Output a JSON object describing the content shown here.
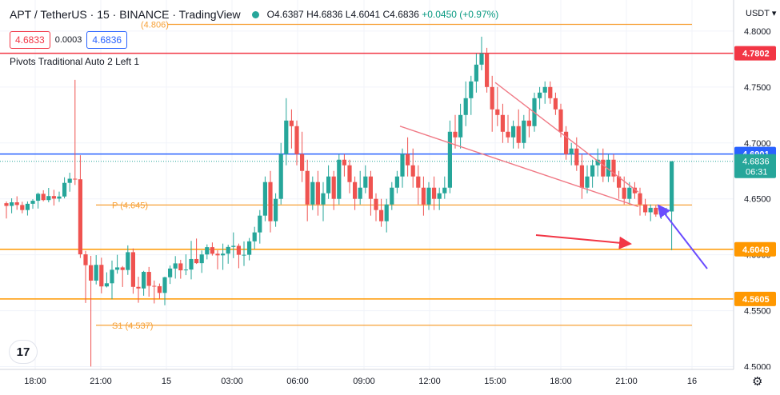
{
  "header": {
    "title": "APT / TetherUS · 15 · BINANCE · TradingView",
    "ohlc_open": "O4.6387",
    "ohlc_high": "H4.6836",
    "ohlc_low": "L4.6041",
    "ohlc_close": "C4.6836",
    "ohlc_change": "+0.0450 (+0.97%)"
  },
  "quote": {
    "bid": "4.6833",
    "spread": "0.0003",
    "ask": "4.6836"
  },
  "indicator_label": "Pivots Traditional Auto 2 Left 1",
  "currency_label": "USDT",
  "logo_text": "17",
  "chart_data": {
    "type": "candlestick",
    "symbol": "APT / TetherUS",
    "interval": "15",
    "exchange": "BINANCE",
    "colors": {
      "up": "#26a69a",
      "down": "#ef5350",
      "pivot": "#f7a035",
      "resistance": "#f23645",
      "support_line": "#ff9800",
      "current": "#2962ff",
      "wedge": "#f07a86",
      "arrow_red": "#f23645",
      "arrow_blue": "#6a4cff"
    },
    "y_axis": {
      "ticks": [
        "4.8000",
        "4.7500",
        "4.7000",
        "4.6500",
        "4.6000",
        "4.5500",
        "4.5000"
      ],
      "range": [
        4.4975,
        4.8278
      ]
    },
    "x_axis": {
      "ticks": [
        "18:00",
        "21:00",
        "15",
        "03:00",
        "06:00",
        "09:00",
        "12:00",
        "15:00",
        "18:00",
        "21:00",
        "16"
      ]
    },
    "levels": [
      {
        "price": 4.806,
        "label": "(4.806)",
        "color": "#f7a035"
      },
      {
        "price": 4.7802,
        "label": "4.7802",
        "color": "#f23645",
        "axis_box": true
      },
      {
        "price": 4.6901,
        "label": "4.6901",
        "color": "#2962ff",
        "axis_box": true
      },
      {
        "price": 4.6445,
        "label": "P (4.645)",
        "color": "#f7a035"
      },
      {
        "price": 4.6049,
        "label": "4.6049",
        "color": "#ff9800",
        "axis_box": true
      },
      {
        "price": 4.5605,
        "label": "4.5605",
        "color": "#ff9800",
        "axis_box": true
      },
      {
        "price": 4.537,
        "label": "S1 (4.537)",
        "color": "#f7a035"
      }
    ],
    "last_price": {
      "price": "4.6836",
      "countdown": "06:31"
    },
    "candles": [
      [
        4.6461,
        4.6476,
        4.6324,
        4.6437
      ],
      [
        4.6437,
        4.6505,
        4.6371,
        4.6469
      ],
      [
        4.6469,
        4.6523,
        4.6402,
        4.6445
      ],
      [
        4.6445,
        4.6474,
        4.6371,
        4.64
      ],
      [
        4.64,
        4.6477,
        4.6351,
        4.6456
      ],
      [
        4.6456,
        4.6497,
        4.6411,
        4.6483
      ],
      [
        4.6483,
        4.6556,
        4.6413,
        4.6545
      ],
      [
        4.6545,
        4.6577,
        4.6478,
        4.6489
      ],
      [
        4.6489,
        4.6598,
        4.6469,
        4.6525
      ],
      [
        4.6525,
        4.6581,
        4.644,
        4.6502
      ],
      [
        4.6502,
        4.6565,
        4.6473,
        4.6521
      ],
      [
        4.6521,
        4.6693,
        4.6504,
        4.6643
      ],
      [
        4.6643,
        4.6734,
        4.6564,
        4.668
      ],
      [
        4.668,
        4.7564,
        4.6624,
        4.6675
      ],
      [
        4.6675,
        4.689,
        4.5971,
        4.6004
      ],
      [
        4.6004,
        4.6035,
        4.5569,
        4.5907
      ],
      [
        4.5907,
        4.599,
        4.5001,
        4.5769
      ],
      [
        4.5769,
        4.5997,
        4.5735,
        4.591
      ],
      [
        4.591,
        4.5974,
        4.5655,
        4.5717
      ],
      [
        4.5717,
        4.5843,
        4.5708,
        4.5745
      ],
      [
        4.5745,
        4.5948,
        4.5602,
        4.5866
      ],
      [
        4.5866,
        4.6,
        4.5831,
        4.5887
      ],
      [
        4.5887,
        4.5899,
        4.5712,
        4.5864
      ],
      [
        4.5864,
        4.6084,
        4.582,
        4.6023
      ],
      [
        4.6023,
        4.6057,
        4.5652,
        4.5713
      ],
      [
        4.5713,
        4.5803,
        4.5571,
        4.5699
      ],
      [
        4.5699,
        4.5856,
        4.5634,
        4.5847
      ],
      [
        4.5847,
        4.5891,
        4.5625,
        4.5722
      ],
      [
        4.5722,
        4.577,
        4.5565,
        4.5719
      ],
      [
        4.5719,
        4.5743,
        4.5605,
        4.5659
      ],
      [
        4.5659,
        4.5803,
        4.5549,
        4.5799
      ],
      [
        4.5799,
        4.5904,
        4.5739,
        4.5877
      ],
      [
        4.5877,
        4.5988,
        4.5787,
        4.5923
      ],
      [
        4.5923,
        4.5955,
        4.5786,
        4.5861
      ],
      [
        4.5861,
        4.6004,
        4.5818,
        4.5868
      ],
      [
        4.5868,
        4.6124,
        4.578,
        4.5962
      ],
      [
        4.5962,
        4.6145,
        4.5918,
        4.5925
      ],
      [
        4.5925,
        4.6039,
        4.5838,
        4.6003
      ],
      [
        4.6003,
        4.6093,
        4.5959,
        4.6068
      ],
      [
        4.6068,
        4.611,
        4.5993,
        4.6009
      ],
      [
        4.6009,
        4.604,
        4.587,
        4.5995
      ],
      [
        4.5995,
        4.61,
        4.5865,
        4.601
      ],
      [
        4.601,
        4.609,
        4.592,
        4.607
      ],
      [
        4.607,
        4.62,
        4.597,
        4.608
      ],
      [
        4.608,
        4.61,
        4.588,
        4.6
      ],
      [
        4.6,
        4.612,
        4.59,
        4.6
      ],
      [
        4.6,
        4.615,
        4.595,
        4.612
      ],
      [
        4.612,
        4.625,
        4.605,
        4.62
      ],
      [
        4.62,
        4.64,
        4.61,
        4.635
      ],
      [
        4.635,
        4.67,
        4.63,
        4.665
      ],
      [
        4.665,
        4.675,
        4.62,
        4.63
      ],
      [
        4.63,
        4.655,
        4.625,
        4.65
      ],
      [
        4.65,
        4.7,
        4.645,
        4.69
      ],
      [
        4.69,
        4.74,
        4.68,
        4.72
      ],
      [
        4.72,
        4.73,
        4.695,
        4.715
      ],
      [
        4.715,
        4.72,
        4.68,
        4.69
      ],
      [
        4.69,
        4.71,
        4.665,
        4.675
      ],
      [
        4.675,
        4.685,
        4.63,
        4.645
      ],
      [
        4.645,
        4.67,
        4.64,
        4.665
      ],
      [
        4.665,
        4.675,
        4.635,
        4.645
      ],
      [
        4.645,
        4.665,
        4.63,
        4.655
      ],
      [
        4.655,
        4.68,
        4.65,
        4.67
      ],
      [
        4.67,
        4.675,
        4.64,
        4.65
      ],
      [
        4.65,
        4.69,
        4.645,
        4.685
      ],
      [
        4.685,
        4.69,
        4.67,
        4.68
      ],
      [
        4.68,
        4.685,
        4.655,
        4.665
      ],
      [
        4.665,
        4.67,
        4.64,
        4.65
      ],
      [
        4.65,
        4.675,
        4.645,
        4.66
      ],
      [
        4.66,
        4.68,
        4.655,
        4.67
      ],
      [
        4.67,
        4.675,
        4.635,
        4.65
      ],
      [
        4.65,
        4.655,
        4.63,
        4.64
      ],
      [
        4.64,
        4.65,
        4.625,
        4.63
      ],
      [
        4.63,
        4.65,
        4.62,
        4.645
      ],
      [
        4.645,
        4.665,
        4.64,
        4.66
      ],
      [
        4.66,
        4.675,
        4.655,
        4.67
      ],
      [
        4.67,
        4.695,
        4.66,
        4.69
      ],
      [
        4.69,
        4.705,
        4.67,
        4.68
      ],
      [
        4.68,
        4.695,
        4.66,
        4.67
      ],
      [
        4.67,
        4.68,
        4.645,
        4.66
      ],
      [
        4.66,
        4.67,
        4.635,
        4.645
      ],
      [
        4.645,
        4.665,
        4.64,
        4.66
      ],
      [
        4.66,
        4.67,
        4.64,
        4.65
      ],
      [
        4.65,
        4.66,
        4.64,
        4.655
      ],
      [
        4.655,
        4.67,
        4.65,
        4.66
      ],
      [
        4.66,
        4.72,
        4.655,
        4.71
      ],
      [
        4.71,
        4.725,
        4.695,
        4.705
      ],
      [
        4.705,
        4.735,
        4.695,
        4.725
      ],
      [
        4.725,
        4.755,
        4.715,
        4.74
      ],
      [
        4.74,
        4.76,
        4.725,
        4.755
      ],
      [
        4.755,
        4.78,
        4.745,
        4.77
      ],
      [
        4.77,
        4.795,
        4.765,
        4.78
      ],
      [
        4.78,
        4.785,
        4.745,
        4.75
      ],
      [
        4.75,
        4.76,
        4.71,
        4.73
      ],
      [
        4.73,
        4.75,
        4.715,
        4.725
      ],
      [
        4.725,
        4.735,
        4.7,
        4.71
      ],
      [
        4.71,
        4.725,
        4.7,
        4.705
      ],
      [
        4.705,
        4.72,
        4.695,
        4.715
      ],
      [
        4.715,
        4.73,
        4.695,
        4.7
      ],
      [
        4.7,
        4.725,
        4.695,
        4.72
      ],
      [
        4.72,
        4.73,
        4.705,
        4.715
      ],
      [
        4.715,
        4.745,
        4.71,
        4.74
      ],
      [
        4.74,
        4.75,
        4.73,
        4.745
      ],
      [
        4.745,
        4.755,
        4.735,
        4.75
      ],
      [
        4.75,
        4.755,
        4.735,
        4.74
      ],
      [
        4.74,
        4.745,
        4.725,
        4.73
      ],
      [
        4.73,
        4.735,
        4.705,
        4.71
      ],
      [
        4.71,
        4.715,
        4.685,
        4.69
      ],
      [
        4.69,
        4.7,
        4.68,
        4.695
      ],
      [
        4.695,
        4.705,
        4.675,
        4.68
      ],
      [
        4.68,
        4.69,
        4.65,
        4.66
      ],
      [
        4.66,
        4.68,
        4.655,
        4.67
      ],
      [
        4.67,
        4.685,
        4.66,
        4.68
      ],
      [
        4.68,
        4.695,
        4.67,
        4.685
      ],
      [
        4.685,
        4.695,
        4.665,
        4.67
      ],
      [
        4.67,
        4.69,
        4.665,
        4.685
      ],
      [
        4.685,
        4.69,
        4.665,
        4.67
      ],
      [
        4.67,
        4.675,
        4.65,
        4.66
      ],
      [
        4.66,
        4.67,
        4.645,
        4.65
      ],
      [
        4.65,
        4.665,
        4.645,
        4.66
      ],
      [
        4.66,
        4.665,
        4.65,
        4.655
      ],
      [
        4.655,
        4.66,
        4.635,
        4.645
      ],
      [
        4.645,
        4.65,
        4.635,
        4.638
      ],
      [
        4.638,
        4.645,
        4.63,
        4.642
      ],
      [
        4.642,
        4.644,
        4.634,
        4.636
      ],
      [
        4.636,
        4.64,
        4.632,
        4.638
      ],
      [
        4.638,
        4.642,
        4.635,
        4.6387
      ],
      [
        4.6387,
        4.6836,
        4.6041,
        4.6836
      ]
    ],
    "annotations": {
      "wedge": {
        "upper": [
          [
            4.754,
            "14:30"
          ],
          [
            4.656,
            "21:15"
          ]
        ],
        "lower": [
          [
            4.715,
            "09:00"
          ],
          [
            4.643,
            "21:15"
          ]
        ]
      },
      "arrows": [
        "red arrow toward 4.6049 support",
        "blue arrow toward last candle"
      ]
    }
  }
}
